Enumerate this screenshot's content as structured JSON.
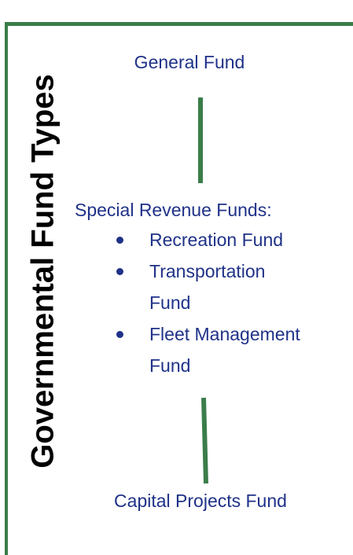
{
  "title": "Governmental Fund Types",
  "nodes": [
    {
      "label": "General Fund"
    },
    {
      "label": "Special Revenue Funds:",
      "items": [
        "Recreation Fund",
        "Transportation Fund",
        "Fleet Management Fund"
      ]
    },
    {
      "label": "Capital Projects Fund"
    }
  ]
}
